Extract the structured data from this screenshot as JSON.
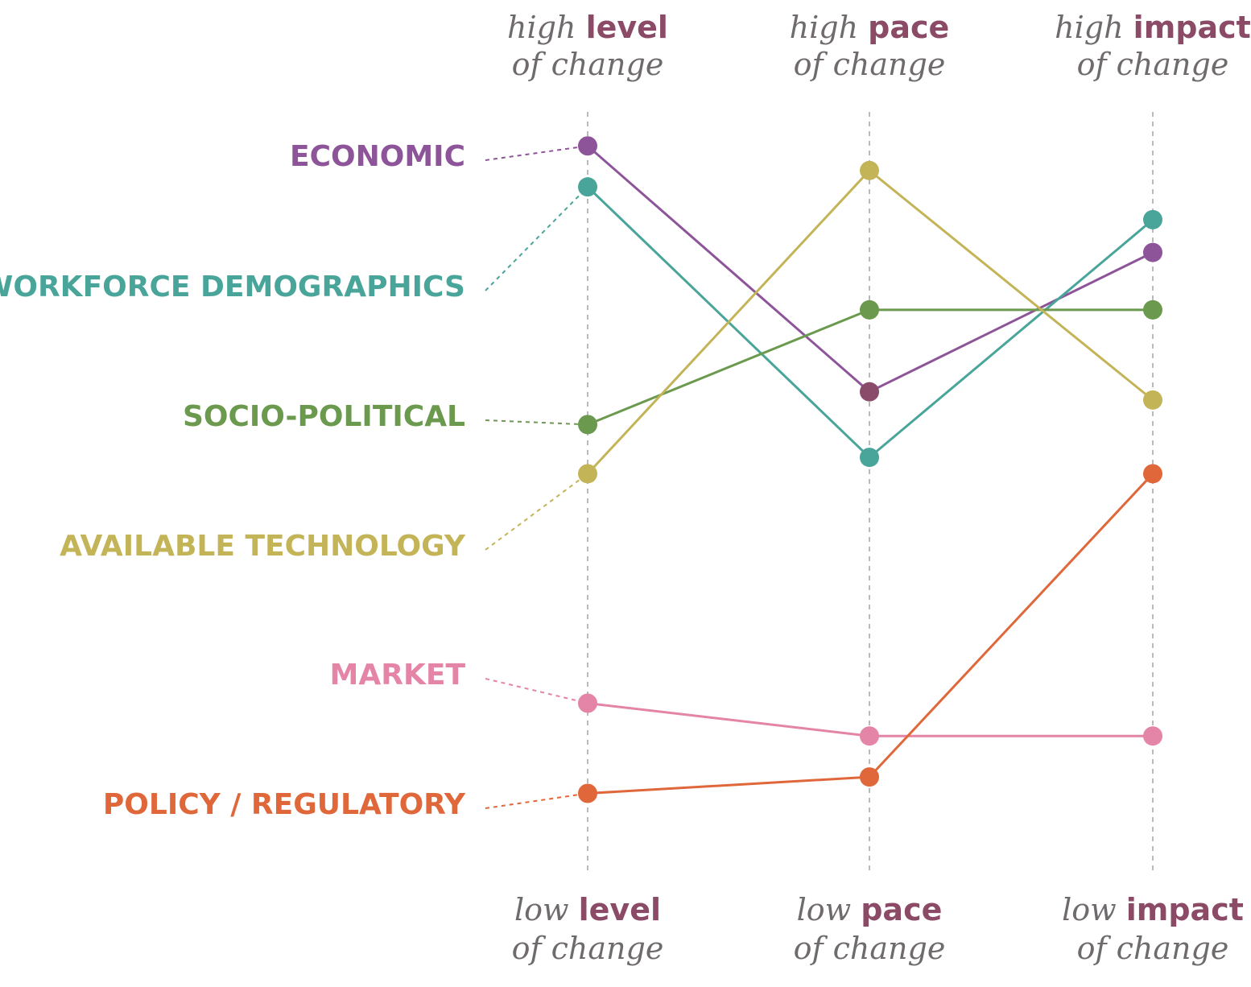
{
  "chart_data": {
    "type": "line",
    "title": "",
    "axes": [
      {
        "name": "level",
        "top_prefix": "high",
        "bottom_prefix": "low",
        "key_word": "level",
        "suffix": "of change"
      },
      {
        "name": "pace",
        "top_prefix": "high",
        "bottom_prefix": "low",
        "key_word": "pace",
        "suffix": "of change"
      },
      {
        "name": "impact",
        "top_prefix": "high",
        "bottom_prefix": "low",
        "key_word": "impact",
        "suffix": "of change"
      }
    ],
    "scale": {
      "min": 0,
      "max": 100,
      "direction": "high at top, low at bottom"
    },
    "series": [
      {
        "name": "ECONOMIC",
        "color": "#8e5499",
        "point_color": "#8e5499",
        "mid_point_color": "#8a4a6a",
        "values": [
          93,
          63,
          80
        ]
      },
      {
        "name": "WORKFORCE DEMOGRAPHICS",
        "color": "#49a59a",
        "point_color": "#49a59a",
        "values": [
          88,
          55,
          84
        ]
      },
      {
        "name": "SOCIO-POLITICAL",
        "color": "#6b9a4f",
        "point_color": "#6b9a4f",
        "values": [
          59,
          73,
          73
        ]
      },
      {
        "name": "AVAILABLE TECHNOLOGY",
        "color": "#c4b458",
        "point_color": "#c4b458",
        "values": [
          53,
          90,
          62
        ]
      },
      {
        "name": "MARKET",
        "color": "#e484a6",
        "point_color": "#e484a6",
        "values": [
          25,
          21,
          21
        ]
      },
      {
        "name": "POLICY / REGULATORY",
        "color": "#e0673a",
        "point_color": "#e0673a",
        "values": [
          14,
          16,
          53
        ]
      }
    ]
  }
}
